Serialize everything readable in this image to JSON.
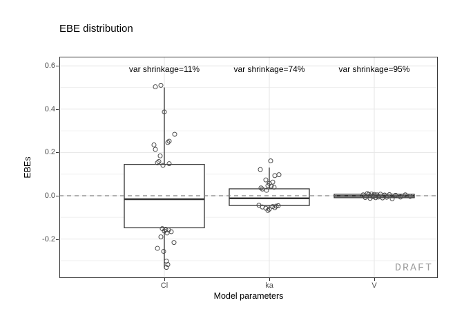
{
  "chart_data": {
    "type": "boxplot",
    "title": "EBE distribution",
    "xlabel": "Model parameters",
    "ylabel": "EBEs",
    "categories": [
      "Cl",
      "ka",
      "V"
    ],
    "y_ticks": [
      0.6,
      0.4,
      0.2,
      0.0,
      -0.2
    ],
    "y_tick_labels": [
      "0.6",
      "0.4",
      "0.2",
      "0.0",
      "-0.2"
    ],
    "y_minor_ticks": [
      0.5,
      0.3,
      0.1,
      -0.1,
      -0.3
    ],
    "ylim": [
      -0.384,
      0.648
    ],
    "grid": true,
    "legend": "none",
    "watermark": "DRAFT",
    "reference_line": {
      "y": 0.0,
      "style": "dashed",
      "color": "#808080"
    },
    "annotations": [
      {
        "category": "Cl",
        "text": "var shrinkage=11%",
        "y": 0.585
      },
      {
        "category": "ka",
        "text": "var shrinkage=74%",
        "y": 0.585
      },
      {
        "category": "V",
        "text": "var shrinkage=95%",
        "y": 0.585
      }
    ],
    "colors": {
      "box": "#333333",
      "point": "#4a4a4a",
      "grid_major": "#e6e6e6",
      "grid_minor": "#f0f0f0",
      "panel_border": "#333333",
      "tick_label": "#4d4d4d",
      "watermark": "#9e9e9e"
    },
    "series": [
      {
        "name": "Cl",
        "whisker_low": -0.335,
        "q1": -0.148,
        "median": -0.016,
        "q3": 0.145,
        "whisker_high": 0.5,
        "points": [
          [
            -13,
            0.503
          ],
          [
            -5,
            0.51
          ],
          [
            0,
            0.387
          ],
          [
            15,
            0.284
          ],
          [
            7,
            0.252
          ],
          [
            5,
            0.246
          ],
          [
            -15,
            0.235
          ],
          [
            -13,
            0.214
          ],
          [
            -6,
            0.184
          ],
          [
            -8,
            0.158
          ],
          [
            -10,
            0.152
          ],
          [
            7,
            0.148
          ],
          [
            -2,
            0.14
          ],
          [
            -3,
            -0.152
          ],
          [
            2,
            -0.155
          ],
          [
            6,
            -0.158
          ],
          [
            0,
            -0.163
          ],
          [
            10,
            -0.166
          ],
          [
            4,
            -0.172
          ],
          [
            -5,
            -0.19
          ],
          [
            14,
            -0.216
          ],
          [
            -10,
            -0.243
          ],
          [
            -1,
            -0.257
          ],
          [
            3,
            -0.302
          ],
          [
            5,
            -0.318
          ],
          [
            3,
            -0.331
          ]
        ]
      },
      {
        "name": "ka",
        "whisker_low": -0.065,
        "q1": -0.045,
        "median": -0.012,
        "q3": 0.032,
        "whisker_high": 0.13,
        "points": [
          [
            2,
            0.161
          ],
          [
            -13,
            0.121
          ],
          [
            14,
            0.097
          ],
          [
            8,
            0.093
          ],
          [
            -5,
            0.073
          ],
          [
            5,
            0.063
          ],
          [
            0,
            0.057
          ],
          [
            -2,
            0.047
          ],
          [
            3,
            0.044
          ],
          [
            7,
            0.039
          ],
          [
            -12,
            0.036
          ],
          [
            -10,
            0.031
          ],
          [
            -4,
            0.025
          ],
          [
            -15,
            -0.044
          ],
          [
            13,
            -0.046
          ],
          [
            10,
            -0.048
          ],
          [
            5,
            -0.05
          ],
          [
            -10,
            -0.052
          ],
          [
            8,
            -0.055
          ],
          [
            -5,
            -0.058
          ],
          [
            0,
            -0.062
          ],
          [
            -2,
            -0.068
          ]
        ]
      },
      {
        "name": "V",
        "whisker_low": -0.015,
        "q1": -0.009,
        "median": -0.001,
        "q3": 0.007,
        "whisker_high": 0.012,
        "points": [
          [
            -16,
            0.004
          ],
          [
            -13,
            -0.008
          ],
          [
            -10,
            0.01
          ],
          [
            -8,
            0.006
          ],
          [
            -6,
            -0.012
          ],
          [
            -4,
            0.008
          ],
          [
            -2,
            -0.005
          ],
          [
            0,
            0.006
          ],
          [
            2,
            -0.009
          ],
          [
            4,
            0.004
          ],
          [
            6,
            -0.006
          ],
          [
            9,
            0.007
          ],
          [
            12,
            -0.01
          ],
          [
            15,
            0.003
          ],
          [
            18,
            -0.007
          ],
          [
            22,
            0.005
          ],
          [
            26,
            -0.014
          ],
          [
            31,
            0.002
          ],
          [
            38,
            -0.006
          ],
          [
            45,
            0.004
          ],
          [
            52,
            -0.003
          ]
        ]
      }
    ]
  }
}
